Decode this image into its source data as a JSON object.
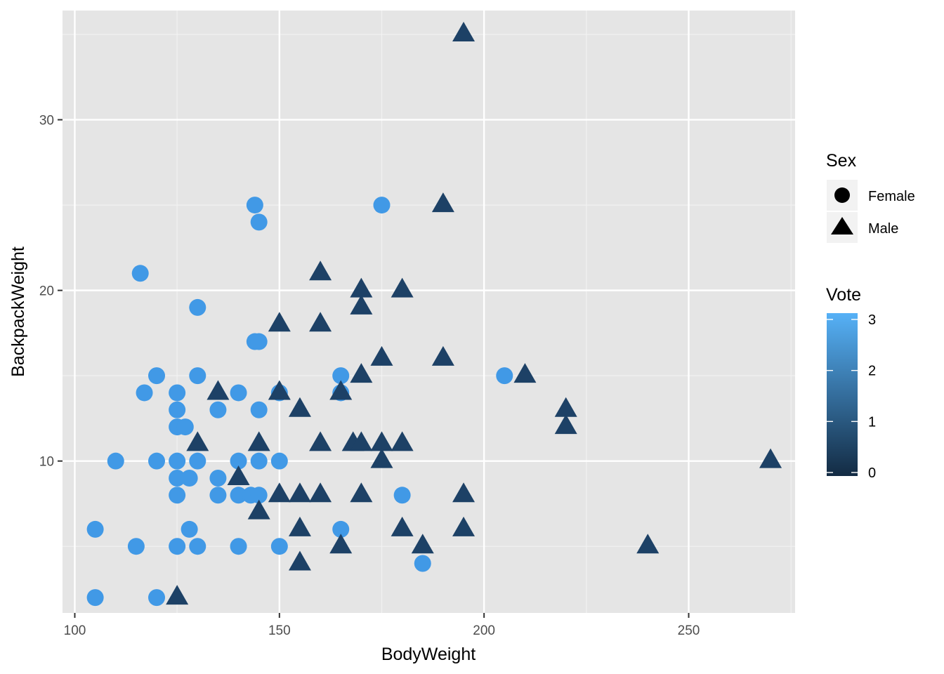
{
  "chart_data": {
    "type": "scatter",
    "xlabel": "BodyWeight",
    "ylabel": "BackpackWeight",
    "xlim": [
      97,
      276
    ],
    "ylim": [
      1.1,
      36.4
    ],
    "x_ticks": [
      100,
      150,
      200,
      250
    ],
    "y_ticks": [
      10,
      20,
      30
    ],
    "x_tick_labels": [
      "100",
      "150",
      "200",
      "250"
    ],
    "y_tick_labels": [
      "10",
      "20",
      "30"
    ],
    "grid": true,
    "background": "#e5e5e5",
    "legend_placement": "right",
    "shape_legend": {
      "title": "Sex",
      "entries": [
        {
          "label": "Female",
          "shape": "circle"
        },
        {
          "label": "Male",
          "shape": "triangle"
        }
      ]
    },
    "color_legend": {
      "title": "Vote",
      "ticks": [
        0,
        1,
        2,
        3
      ],
      "tick_labels": [
        "0",
        "1",
        "2",
        "3"
      ],
      "low_color": "#132b43",
      "high_color": "#56b1f7"
    },
    "series": [
      {
        "name": "Female",
        "shape": "circle",
        "color": "#4199e6",
        "points": [
          [
            105,
            2
          ],
          [
            105,
            6
          ],
          [
            110,
            10
          ],
          [
            115,
            5
          ],
          [
            116,
            21
          ],
          [
            117,
            14
          ],
          [
            120,
            15
          ],
          [
            120,
            10
          ],
          [
            120,
            2
          ],
          [
            125,
            14
          ],
          [
            125,
            13
          ],
          [
            125,
            12
          ],
          [
            125,
            10
          ],
          [
            125,
            9
          ],
          [
            125,
            8
          ],
          [
            125,
            5
          ],
          [
            127,
            12
          ],
          [
            128,
            9
          ],
          [
            128,
            6
          ],
          [
            130,
            19
          ],
          [
            130,
            15
          ],
          [
            130,
            10
          ],
          [
            130,
            5
          ],
          [
            135,
            13
          ],
          [
            135,
            9
          ],
          [
            135,
            8
          ],
          [
            140,
            14
          ],
          [
            140,
            10
          ],
          [
            140,
            8
          ],
          [
            140,
            5
          ],
          [
            143,
            8
          ],
          [
            144,
            25
          ],
          [
            144,
            17
          ],
          [
            145,
            24
          ],
          [
            145,
            17
          ],
          [
            145,
            13
          ],
          [
            145,
            10
          ],
          [
            145,
            8
          ],
          [
            150,
            14
          ],
          [
            150,
            10
          ],
          [
            150,
            5
          ],
          [
            165,
            15
          ],
          [
            165,
            14
          ],
          [
            165,
            6
          ],
          [
            175,
            25
          ],
          [
            180,
            8
          ],
          [
            185,
            4
          ],
          [
            205,
            15
          ]
        ]
      },
      {
        "name": "Male",
        "shape": "triangle",
        "color": "#1d4166",
        "points": [
          [
            125,
            2
          ],
          [
            130,
            11
          ],
          [
            135,
            14
          ],
          [
            140,
            9
          ],
          [
            145,
            11
          ],
          [
            145,
            7
          ],
          [
            150,
            18
          ],
          [
            150,
            14
          ],
          [
            150,
            8
          ],
          [
            155,
            13
          ],
          [
            155,
            8
          ],
          [
            155,
            6
          ],
          [
            155,
            4
          ],
          [
            160,
            21
          ],
          [
            160,
            18
          ],
          [
            160,
            11
          ],
          [
            160,
            8
          ],
          [
            165,
            14
          ],
          [
            165,
            5
          ],
          [
            168,
            11
          ],
          [
            170,
            20
          ],
          [
            170,
            19
          ],
          [
            170,
            15
          ],
          [
            170,
            11
          ],
          [
            170,
            8
          ],
          [
            175,
            16
          ],
          [
            175,
            11
          ],
          [
            175,
            10
          ],
          [
            180,
            20
          ],
          [
            180,
            11
          ],
          [
            180,
            6
          ],
          [
            185,
            5
          ],
          [
            190,
            25
          ],
          [
            190,
            16
          ],
          [
            195,
            35
          ],
          [
            195,
            8
          ],
          [
            195,
            6
          ],
          [
            210,
            15
          ],
          [
            220,
            13
          ],
          [
            220,
            12
          ],
          [
            240,
            5
          ],
          [
            270,
            10
          ]
        ]
      }
    ]
  }
}
